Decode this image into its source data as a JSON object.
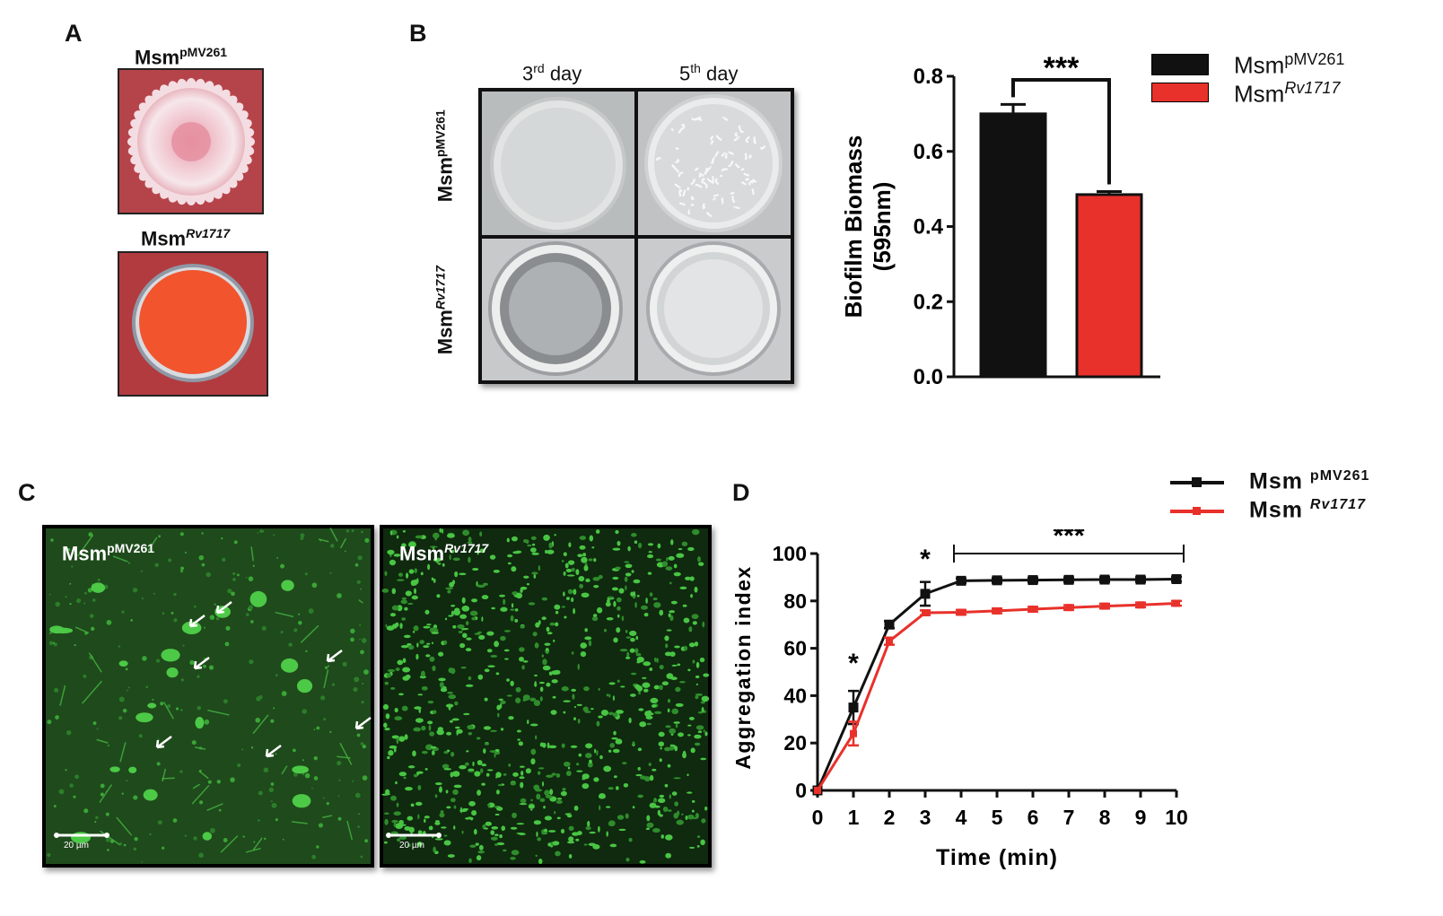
{
  "panels": {
    "a": "A",
    "b": "B",
    "c": "C",
    "d": "D"
  },
  "strains": {
    "ctrl_base": "Msm",
    "ctrl_sup": "pMV261",
    "rv_base": "Msm",
    "rv_sup": "Rv1717"
  },
  "panel_b": {
    "col1_base": "3",
    "col1_sup": "rd",
    "col1_rest": " day",
    "col2_base": "5",
    "col2_sup": "th",
    "col2_rest": " day"
  },
  "panel_c": {
    "scale1": "20 µm",
    "scale2": "20 µm"
  },
  "colors": {
    "ctrl": "#111111",
    "rv": "#e8312b",
    "plate_red": "#b13a3e",
    "fluor": "#3fbf3a"
  },
  "chart_data": [
    {
      "type": "bar",
      "categories": [
        "MsmpMV261",
        "MsmRv1717"
      ],
      "values": [
        0.7,
        0.485
      ],
      "errors": [
        0.025,
        0.008
      ],
      "ylabel": "Biofilm Biomass (595nm)",
      "ylabel_line1": "Biofilm Biomass",
      "ylabel_line2": "(595nm)",
      "ylim": [
        0,
        0.8
      ],
      "yticks": [
        "0.0",
        "0.2",
        "0.4",
        "0.6",
        "0.8"
      ],
      "significance": "***",
      "legend_placement": "top-right"
    },
    {
      "type": "line",
      "xlabel": "Time (min)",
      "ylabel": "Aggregation index",
      "xlim": [
        0,
        10
      ],
      "ylim": [
        0,
        100
      ],
      "xticks": [
        "0",
        "1",
        "2",
        "3",
        "4",
        "5",
        "6",
        "7",
        "8",
        "9",
        "10"
      ],
      "yticks": [
        "0",
        "20",
        "40",
        "60",
        "80",
        "100"
      ],
      "x": [
        0,
        1,
        2,
        3,
        4,
        5,
        6,
        7,
        8,
        9,
        10
      ],
      "series": [
        {
          "values": [
            0,
            35,
            70,
            83,
            88.5,
            88.7,
            88.8,
            88.9,
            89,
            89,
            89.2
          ],
          "errors": [
            0,
            7,
            1.5,
            5,
            1,
            1,
            1,
            1,
            1,
            1,
            1
          ]
        },
        {
          "values": [
            0,
            24,
            63,
            75,
            75.2,
            75.8,
            76.5,
            77.2,
            77.8,
            78.3,
            79
          ],
          "errors": [
            0,
            5,
            1.5,
            1,
            1,
            1,
            1,
            1,
            1,
            1,
            1
          ]
        }
      ],
      "significance": {
        "at_1": "*",
        "at_3": "*",
        "range_4_10": "***"
      },
      "legend_placement": "top-right"
    }
  ]
}
